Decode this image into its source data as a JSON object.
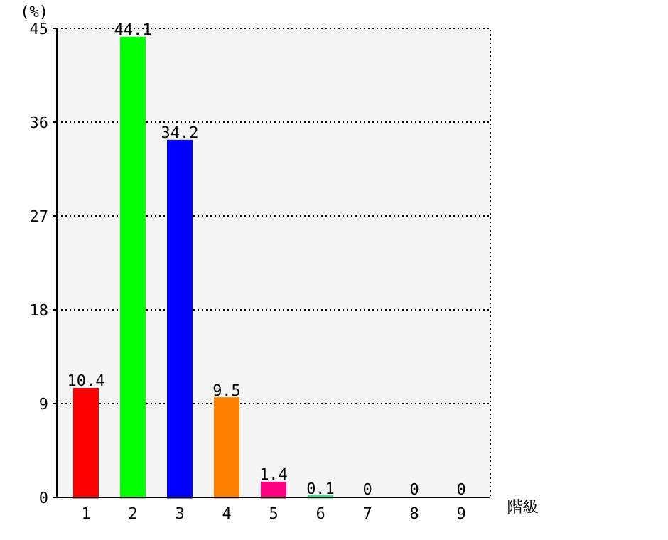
{
  "chart_data": {
    "type": "bar",
    "ylabel": "(%)",
    "xlabel": "階級",
    "categories": [
      "1",
      "2",
      "3",
      "4",
      "5",
      "6",
      "7",
      "8",
      "9"
    ],
    "values": [
      10.4,
      44.1,
      34.2,
      9.5,
      1.4,
      0.1,
      0,
      0,
      0
    ],
    "colors": [
      "#ff0000",
      "#00ff00",
      "#0000ff",
      "#ff8000",
      "#ff0080",
      "#00ff80",
      "#8000ff",
      "#0080ff",
      "#80ff00"
    ],
    "ylim": [
      0,
      45
    ],
    "yticks": [
      0,
      9,
      18,
      27,
      36,
      45
    ],
    "grid": "y",
    "data_labels": true
  }
}
